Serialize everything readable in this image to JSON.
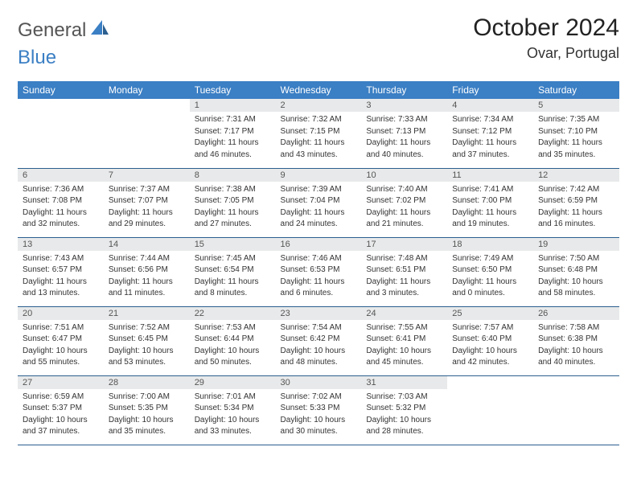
{
  "brand": {
    "part1": "General",
    "part2": "Blue"
  },
  "title": "October 2024",
  "location": "Ovar, Portugal",
  "colors": {
    "header_bg": "#3b7fc4",
    "header_text": "#ffffff",
    "daynum_bg": "#e8e9ea",
    "row_divider": "#2b5f8f",
    "text": "#333333"
  },
  "day_headers": [
    "Sunday",
    "Monday",
    "Tuesday",
    "Wednesday",
    "Thursday",
    "Friday",
    "Saturday"
  ],
  "weeks": [
    [
      {
        "n": "",
        "sr": "",
        "ss": "",
        "dl1": "",
        "dl2": ""
      },
      {
        "n": "",
        "sr": "",
        "ss": "",
        "dl1": "",
        "dl2": ""
      },
      {
        "n": "1",
        "sr": "Sunrise: 7:31 AM",
        "ss": "Sunset: 7:17 PM",
        "dl1": "Daylight: 11 hours",
        "dl2": "and 46 minutes."
      },
      {
        "n": "2",
        "sr": "Sunrise: 7:32 AM",
        "ss": "Sunset: 7:15 PM",
        "dl1": "Daylight: 11 hours",
        "dl2": "and 43 minutes."
      },
      {
        "n": "3",
        "sr": "Sunrise: 7:33 AM",
        "ss": "Sunset: 7:13 PM",
        "dl1": "Daylight: 11 hours",
        "dl2": "and 40 minutes."
      },
      {
        "n": "4",
        "sr": "Sunrise: 7:34 AM",
        "ss": "Sunset: 7:12 PM",
        "dl1": "Daylight: 11 hours",
        "dl2": "and 37 minutes."
      },
      {
        "n": "5",
        "sr": "Sunrise: 7:35 AM",
        "ss": "Sunset: 7:10 PM",
        "dl1": "Daylight: 11 hours",
        "dl2": "and 35 minutes."
      }
    ],
    [
      {
        "n": "6",
        "sr": "Sunrise: 7:36 AM",
        "ss": "Sunset: 7:08 PM",
        "dl1": "Daylight: 11 hours",
        "dl2": "and 32 minutes."
      },
      {
        "n": "7",
        "sr": "Sunrise: 7:37 AM",
        "ss": "Sunset: 7:07 PM",
        "dl1": "Daylight: 11 hours",
        "dl2": "and 29 minutes."
      },
      {
        "n": "8",
        "sr": "Sunrise: 7:38 AM",
        "ss": "Sunset: 7:05 PM",
        "dl1": "Daylight: 11 hours",
        "dl2": "and 27 minutes."
      },
      {
        "n": "9",
        "sr": "Sunrise: 7:39 AM",
        "ss": "Sunset: 7:04 PM",
        "dl1": "Daylight: 11 hours",
        "dl2": "and 24 minutes."
      },
      {
        "n": "10",
        "sr": "Sunrise: 7:40 AM",
        "ss": "Sunset: 7:02 PM",
        "dl1": "Daylight: 11 hours",
        "dl2": "and 21 minutes."
      },
      {
        "n": "11",
        "sr": "Sunrise: 7:41 AM",
        "ss": "Sunset: 7:00 PM",
        "dl1": "Daylight: 11 hours",
        "dl2": "and 19 minutes."
      },
      {
        "n": "12",
        "sr": "Sunrise: 7:42 AM",
        "ss": "Sunset: 6:59 PM",
        "dl1": "Daylight: 11 hours",
        "dl2": "and 16 minutes."
      }
    ],
    [
      {
        "n": "13",
        "sr": "Sunrise: 7:43 AM",
        "ss": "Sunset: 6:57 PM",
        "dl1": "Daylight: 11 hours",
        "dl2": "and 13 minutes."
      },
      {
        "n": "14",
        "sr": "Sunrise: 7:44 AM",
        "ss": "Sunset: 6:56 PM",
        "dl1": "Daylight: 11 hours",
        "dl2": "and 11 minutes."
      },
      {
        "n": "15",
        "sr": "Sunrise: 7:45 AM",
        "ss": "Sunset: 6:54 PM",
        "dl1": "Daylight: 11 hours",
        "dl2": "and 8 minutes."
      },
      {
        "n": "16",
        "sr": "Sunrise: 7:46 AM",
        "ss": "Sunset: 6:53 PM",
        "dl1": "Daylight: 11 hours",
        "dl2": "and 6 minutes."
      },
      {
        "n": "17",
        "sr": "Sunrise: 7:48 AM",
        "ss": "Sunset: 6:51 PM",
        "dl1": "Daylight: 11 hours",
        "dl2": "and 3 minutes."
      },
      {
        "n": "18",
        "sr": "Sunrise: 7:49 AM",
        "ss": "Sunset: 6:50 PM",
        "dl1": "Daylight: 11 hours",
        "dl2": "and 0 minutes."
      },
      {
        "n": "19",
        "sr": "Sunrise: 7:50 AM",
        "ss": "Sunset: 6:48 PM",
        "dl1": "Daylight: 10 hours",
        "dl2": "and 58 minutes."
      }
    ],
    [
      {
        "n": "20",
        "sr": "Sunrise: 7:51 AM",
        "ss": "Sunset: 6:47 PM",
        "dl1": "Daylight: 10 hours",
        "dl2": "and 55 minutes."
      },
      {
        "n": "21",
        "sr": "Sunrise: 7:52 AM",
        "ss": "Sunset: 6:45 PM",
        "dl1": "Daylight: 10 hours",
        "dl2": "and 53 minutes."
      },
      {
        "n": "22",
        "sr": "Sunrise: 7:53 AM",
        "ss": "Sunset: 6:44 PM",
        "dl1": "Daylight: 10 hours",
        "dl2": "and 50 minutes."
      },
      {
        "n": "23",
        "sr": "Sunrise: 7:54 AM",
        "ss": "Sunset: 6:42 PM",
        "dl1": "Daylight: 10 hours",
        "dl2": "and 48 minutes."
      },
      {
        "n": "24",
        "sr": "Sunrise: 7:55 AM",
        "ss": "Sunset: 6:41 PM",
        "dl1": "Daylight: 10 hours",
        "dl2": "and 45 minutes."
      },
      {
        "n": "25",
        "sr": "Sunrise: 7:57 AM",
        "ss": "Sunset: 6:40 PM",
        "dl1": "Daylight: 10 hours",
        "dl2": "and 42 minutes."
      },
      {
        "n": "26",
        "sr": "Sunrise: 7:58 AM",
        "ss": "Sunset: 6:38 PM",
        "dl1": "Daylight: 10 hours",
        "dl2": "and 40 minutes."
      }
    ],
    [
      {
        "n": "27",
        "sr": "Sunrise: 6:59 AM",
        "ss": "Sunset: 5:37 PM",
        "dl1": "Daylight: 10 hours",
        "dl2": "and 37 minutes."
      },
      {
        "n": "28",
        "sr": "Sunrise: 7:00 AM",
        "ss": "Sunset: 5:35 PM",
        "dl1": "Daylight: 10 hours",
        "dl2": "and 35 minutes."
      },
      {
        "n": "29",
        "sr": "Sunrise: 7:01 AM",
        "ss": "Sunset: 5:34 PM",
        "dl1": "Daylight: 10 hours",
        "dl2": "and 33 minutes."
      },
      {
        "n": "30",
        "sr": "Sunrise: 7:02 AM",
        "ss": "Sunset: 5:33 PM",
        "dl1": "Daylight: 10 hours",
        "dl2": "and 30 minutes."
      },
      {
        "n": "31",
        "sr": "Sunrise: 7:03 AM",
        "ss": "Sunset: 5:32 PM",
        "dl1": "Daylight: 10 hours",
        "dl2": "and 28 minutes."
      },
      {
        "n": "",
        "sr": "",
        "ss": "",
        "dl1": "",
        "dl2": ""
      },
      {
        "n": "",
        "sr": "",
        "ss": "",
        "dl1": "",
        "dl2": ""
      }
    ]
  ]
}
